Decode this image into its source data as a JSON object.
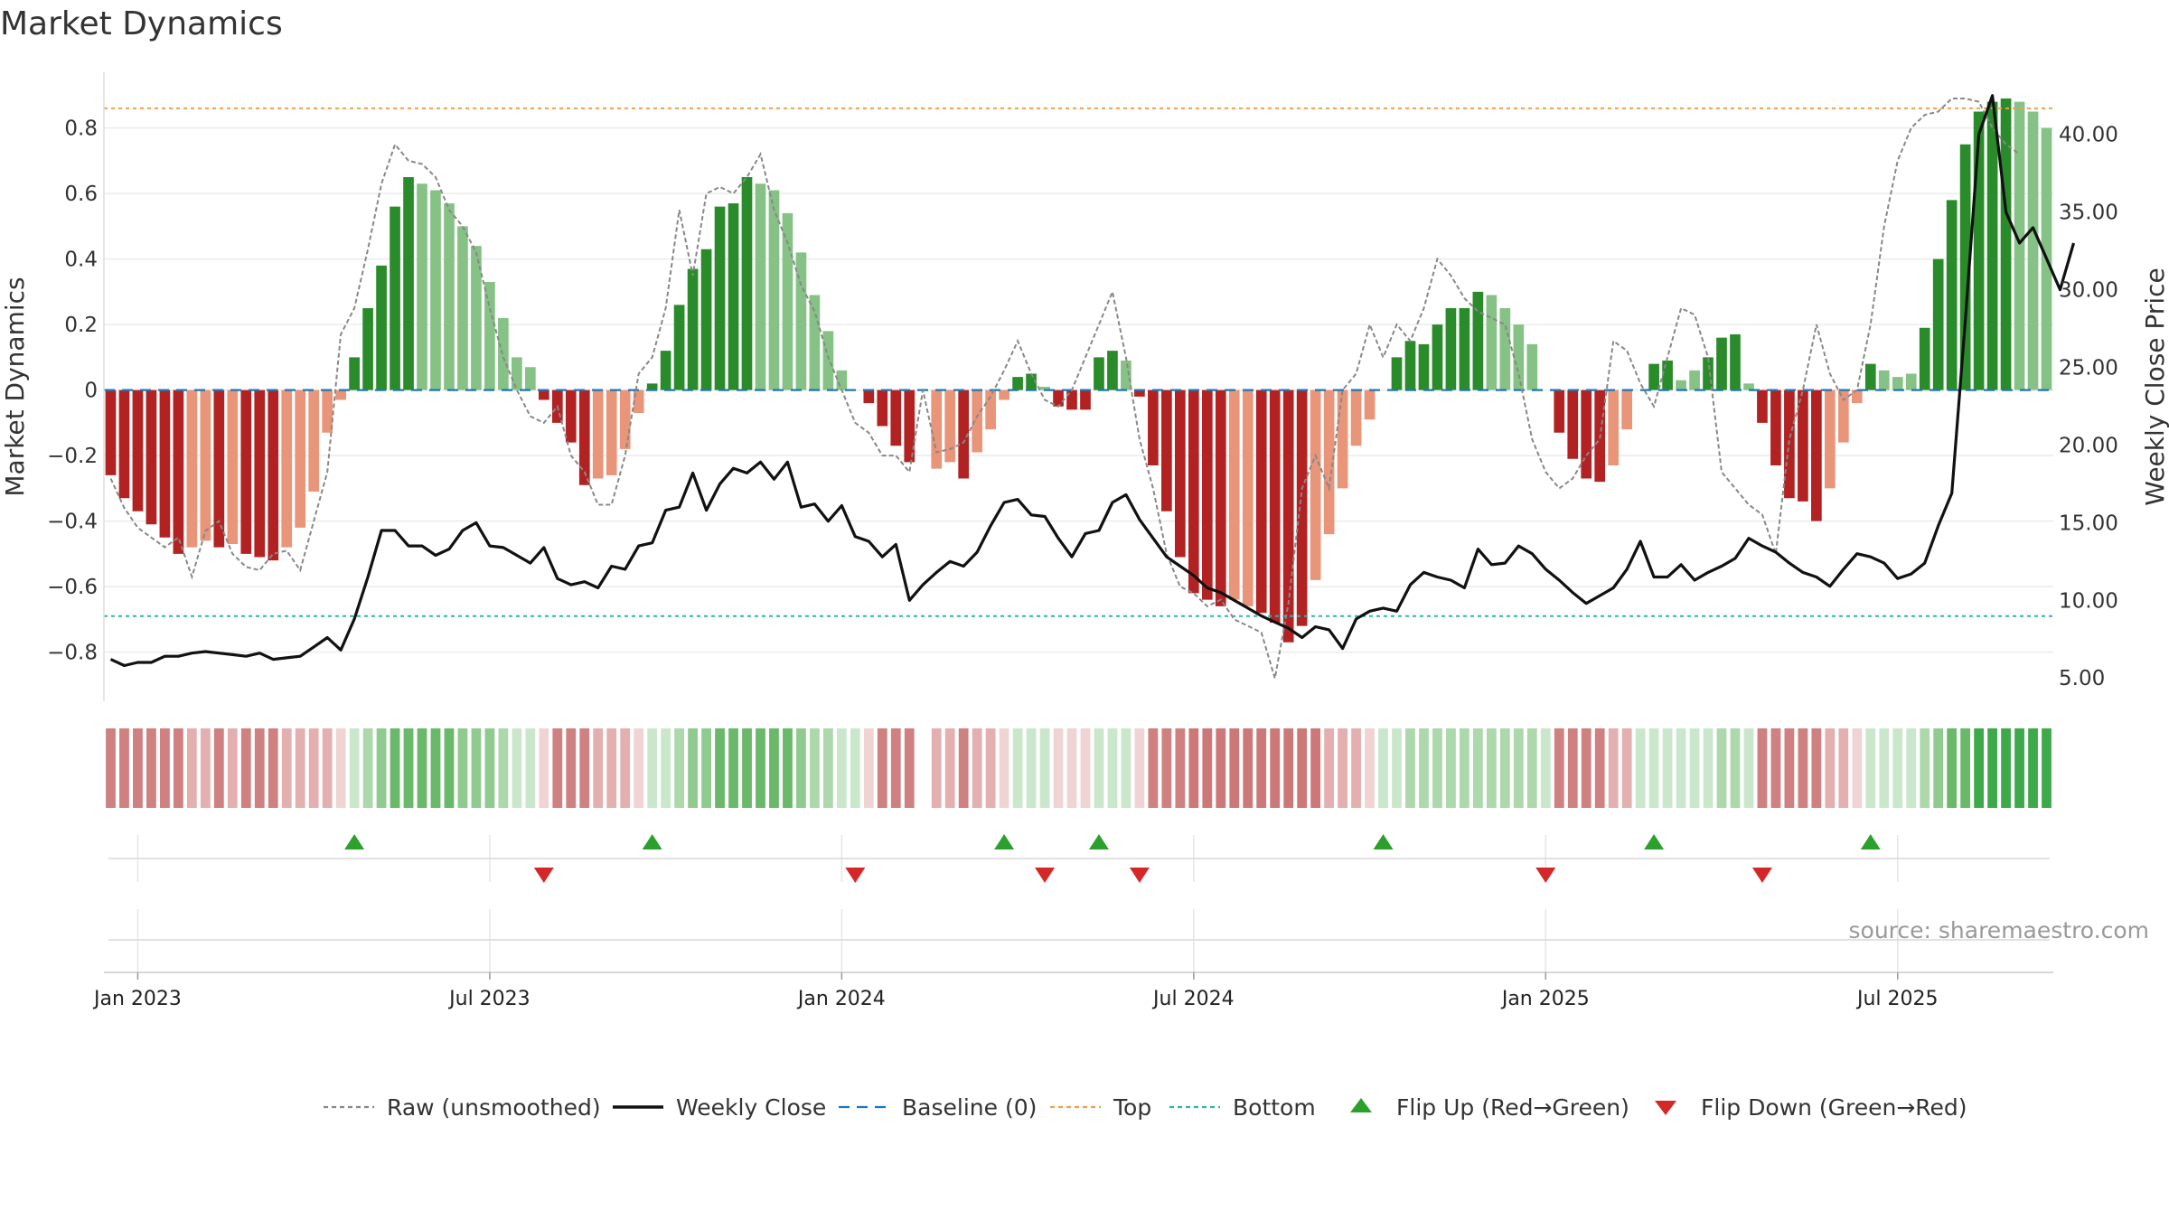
{
  "chart_data": {
    "type": "bar",
    "title": "Market Dynamics",
    "ylabel_left": "Market Dynamics",
    "ylabel_right": "Weekly Close Price",
    "ylim_left": [
      -0.95,
      0.97
    ],
    "ylim_right": [
      3.5,
      44.0
    ],
    "yticks_left": [
      0.8,
      0.6,
      0.4,
      0.2,
      0,
      -0.2,
      -0.4,
      -0.6,
      -0.8
    ],
    "ytick_labels_left": [
      "0.8",
      "0.6",
      "0.4",
      "0.2",
      "0",
      "−0.2",
      "−0.4",
      "−0.6",
      "−0.8"
    ],
    "yticks_right": [
      40,
      35,
      30,
      25,
      20,
      15,
      10,
      5
    ],
    "ytick_labels_right": [
      "40.00",
      "35.00",
      "30.00",
      "25.00",
      "20.00",
      "15.00",
      "10.00",
      "5.00"
    ],
    "xtick_labels": [
      "Jan 2023",
      "Jul 2023",
      "Jan 2024",
      "Jul 2024",
      "Jan 2025",
      "Jul 2025"
    ],
    "xtick_weeks": [
      2,
      28,
      54,
      80,
      106,
      132
    ],
    "top_line": 0.86,
    "bottom_line": -0.69,
    "source": "source: sharemaestro.com",
    "gap_weeks": [
      60
    ],
    "bars": [
      -0.26,
      -0.33,
      -0.37,
      -0.41,
      -0.45,
      -0.5,
      -0.48,
      -0.46,
      -0.48,
      -0.47,
      -0.5,
      -0.51,
      -0.52,
      -0.48,
      -0.42,
      -0.31,
      -0.13,
      -0.03,
      0.1,
      0.25,
      0.38,
      0.56,
      0.65,
      0.63,
      0.61,
      0.57,
      0.5,
      0.44,
      0.33,
      0.22,
      0.1,
      0.07,
      -0.03,
      -0.1,
      -0.16,
      -0.29,
      -0.27,
      -0.26,
      -0.18,
      -0.07,
      0.02,
      0.12,
      0.26,
      0.37,
      0.43,
      0.56,
      0.57,
      0.65,
      0.63,
      0.61,
      0.54,
      0.42,
      0.29,
      0.18,
      0.06,
      0,
      -0.04,
      -0.11,
      -0.17,
      -0.22,
      0,
      -0.24,
      -0.22,
      -0.27,
      -0.19,
      -0.12,
      -0.03,
      0.04,
      0.05,
      0.01,
      -0.05,
      -0.06,
      -0.06,
      0.1,
      0.12,
      0.09,
      -0.02,
      -0.23,
      -0.37,
      -0.51,
      -0.62,
      -0.64,
      -0.66,
      -0.64,
      -0.66,
      -0.68,
      -0.71,
      -0.77,
      -0.72,
      -0.58,
      -0.44,
      -0.3,
      -0.17,
      -0.09,
      0,
      0.1,
      0.15,
      0.14,
      0.2,
      0.25,
      0.25,
      0.3,
      0.29,
      0.25,
      0.2,
      0.14,
      0,
      -0.13,
      -0.21,
      -0.27,
      -0.28,
      -0.23,
      -0.12,
      0,
      0.08,
      0.09,
      0.03,
      0.06,
      0.1,
      0.16,
      0.17,
      0.02,
      -0.1,
      -0.23,
      -0.33,
      -0.34,
      -0.4,
      -0.3,
      -0.16,
      -0.04,
      0.08,
      0.06,
      0.04,
      0.05,
      0.19,
      0.4,
      0.58,
      0.75,
      0.85,
      0.88,
      0.89,
      0.88,
      0.85,
      0.8
    ],
    "bar_strength": [
      1,
      1,
      1,
      1,
      1,
      1,
      0,
      0,
      1,
      0,
      1,
      1,
      1,
      0,
      0,
      0,
      0,
      0,
      1,
      1,
      1,
      1,
      1,
      0,
      0,
      0,
      0,
      0,
      0,
      0,
      0,
      0,
      1,
      1,
      1,
      1,
      0,
      0,
      0,
      0,
      1,
      1,
      1,
      1,
      1,
      1,
      1,
      1,
      0,
      0,
      0,
      0,
      0,
      0,
      0,
      1,
      1,
      1,
      1,
      1,
      0,
      0,
      0,
      1,
      0,
      0,
      0,
      1,
      1,
      0,
      1,
      1,
      1,
      1,
      1,
      0,
      1,
      1,
      1,
      1,
      1,
      1,
      1,
      0,
      0,
      1,
      1,
      1,
      1,
      0,
      0,
      0,
      0,
      0,
      0,
      1,
      1,
      1,
      1,
      1,
      1,
      1,
      0,
      0,
      0,
      0,
      1,
      1,
      1,
      1,
      1,
      0,
      0,
      0,
      1,
      1,
      0,
      0,
      1,
      1,
      1,
      0,
      1,
      1,
      1,
      1,
      1,
      0,
      0,
      0,
      1,
      0,
      0,
      0,
      1,
      1,
      1,
      1,
      1,
      1,
      1,
      0,
      0,
      0
    ],
    "raw": [
      -0.27,
      -0.36,
      -0.42,
      -0.45,
      -0.48,
      -0.45,
      -0.57,
      -0.43,
      -0.4,
      -0.5,
      -0.54,
      -0.55,
      -0.5,
      -0.49,
      -0.55,
      -0.4,
      -0.25,
      0.17,
      0.25,
      0.43,
      0.63,
      0.75,
      0.7,
      0.69,
      0.65,
      0.55,
      0.5,
      0.42,
      0.25,
      0.1,
      0,
      -0.08,
      -0.1,
      -0.05,
      -0.2,
      -0.25,
      -0.35,
      -0.35,
      -0.2,
      0.05,
      0.1,
      0.25,
      0.55,
      0.35,
      0.6,
      0.62,
      0.6,
      0.65,
      0.72,
      0.55,
      0.45,
      0.32,
      0.24,
      0.1,
      0,
      -0.1,
      -0.13,
      -0.2,
      -0.2,
      -0.25,
      0,
      -0.19,
      -0.18,
      -0.16,
      -0.08,
      -0.02,
      0.06,
      0.15,
      0.05,
      -0.03,
      -0.05,
      0,
      0.1,
      0.2,
      0.3,
      0.1,
      -0.15,
      -0.3,
      -0.5,
      -0.6,
      -0.62,
      -0.66,
      -0.64,
      -0.7,
      -0.72,
      -0.74,
      -0.88,
      -0.65,
      -0.3,
      -0.2,
      -0.3,
      0,
      0.05,
      0.2,
      0.1,
      0.2,
      0.15,
      0.25,
      0.4,
      0.35,
      0.28,
      0.24,
      0.22,
      0.2,
      0.05,
      -0.15,
      -0.25,
      -0.3,
      -0.27,
      -0.2,
      -0.15,
      0.15,
      0.12,
      0.02,
      -0.05,
      0.1,
      0.25,
      0.23,
      0.1,
      -0.25,
      -0.3,
      -0.35,
      -0.38,
      -0.5,
      -0.15,
      0,
      0.2,
      0.05,
      -0.03,
      0,
      0.2,
      0.5,
      0.7,
      0.8,
      0.84,
      0.85,
      0.89,
      0.89,
      0.88,
      0.8,
      0.75,
      0.72
    ],
    "close": [
      6.2,
      5.8,
      6.0,
      6.0,
      6.4,
      6.4,
      6.6,
      6.7,
      6.6,
      6.5,
      6.4,
      6.6,
      6.2,
      6.3,
      6.4,
      7.0,
      7.6,
      6.8,
      8.8,
      11.5,
      14.5,
      14.5,
      13.5,
      13.5,
      12.9,
      13.3,
      14.5,
      15.0,
      13.5,
      13.4,
      12.9,
      12.4,
      13.4,
      11.4,
      11.0,
      11.2,
      10.8,
      12.2,
      12.0,
      13.5,
      13.7,
      15.8,
      16.0,
      18.2,
      15.8,
      17.5,
      18.5,
      18.2,
      18.9,
      17.8,
      18.9,
      16.0,
      16.2,
      15.1,
      16.1,
      14.1,
      13.8,
      12.8,
      13.6,
      10.0,
      11.0,
      11.8,
      12.5,
      12.2,
      13.1,
      14.8,
      16.3,
      16.5,
      15.5,
      15.4,
      14.0,
      12.8,
      14.3,
      14.5,
      16.3,
      16.8,
      15.2,
      14.0,
      12.8,
      12.2,
      11.6,
      10.8,
      10.5,
      10.0,
      9.5,
      9.0,
      8.6,
      8.2,
      7.6,
      8.3,
      8.1,
      6.9,
      8.8,
      9.3,
      9.5,
      9.3,
      11.0,
      11.8,
      11.5,
      11.3,
      10.8,
      13.3,
      12.3,
      12.4,
      13.5,
      13.0,
      12.0,
      11.3,
      10.5,
      9.8,
      10.3,
      10.8,
      12.0,
      13.8,
      11.5,
      11.5,
      12.3,
      11.3,
      11.8,
      12.2,
      12.7,
      14.0,
      13.5,
      13.1,
      12.4,
      11.8,
      11.5,
      10.9,
      12.0,
      13.0,
      12.8,
      12.4,
      11.4,
      11.7,
      12.4,
      14.8,
      16.9,
      28.0,
      40.0,
      42.5,
      35.0,
      33.0,
      34.0,
      32.0,
      30.0,
      33.0
    ],
    "ribbon": {
      "neg": [
        "#dba0a1",
        "#d99898",
        "#dba0a1",
        "#d99898",
        "#dba0a1",
        "#d99898",
        "#dba0a1",
        "#d99898",
        "#dba0a1",
        "#d99898",
        "#dba0a1",
        "#d99898",
        "#dba0a1",
        "#d99898",
        "#dba0a1",
        "#e8c1c1",
        "#f2d8d8"
      ],
      "pos": [
        "#c9e5c9",
        "#8fca8f",
        "#88c788",
        "#7dc07d",
        "#83c383",
        "#8fca8f",
        "#9bd09b",
        "#88c788",
        "#7dc07d",
        "#83c383",
        "#8fca8f",
        "#9bd09b",
        "#a8d6a8",
        "#b8ddb8",
        "#c9e5c9",
        "#d6ecd6"
      ]
    },
    "flips_up": [
      18,
      40,
      66,
      73,
      94,
      114,
      130
    ],
    "flips_down": [
      32,
      55,
      69,
      76,
      106,
      122
    ],
    "legend": [
      {
        "label": "Raw (unsmoothed)",
        "kind": "dotted",
        "color": "#888888"
      },
      {
        "label": "Weekly Close",
        "kind": "solid",
        "color": "#111111"
      },
      {
        "label": "Baseline (0)",
        "kind": "dashed",
        "color": "#1f77b4"
      },
      {
        "label": "Top",
        "kind": "dotted",
        "color": "#f0a050"
      },
      {
        "label": "Bottom",
        "kind": "dotted",
        "color": "#2bb5b5"
      },
      {
        "label": "Flip Up (Red→Green)",
        "kind": "up",
        "color": "#2ca02c"
      },
      {
        "label": "Flip Down (Green→Red)",
        "kind": "down",
        "color": "#d62728"
      }
    ],
    "colors": {
      "strong_pos": "#2a8b2a",
      "weak_pos": "#86c286",
      "strong_neg": "#b22222",
      "weak_neg": "#e8957a",
      "top": "#f0a050",
      "bottom": "#2bb5b5",
      "baseline": "#1f77b4",
      "raw": "#888888",
      "close": "#111111",
      "flip_up": "#2ca02c",
      "flip_down": "#d62728"
    }
  }
}
